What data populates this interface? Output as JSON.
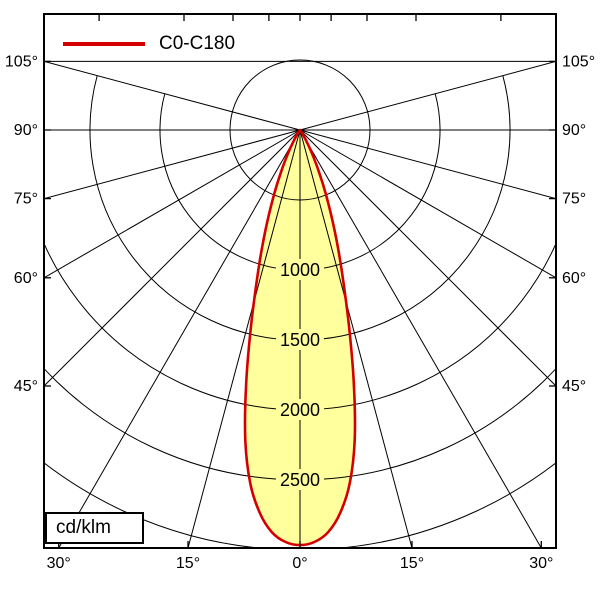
{
  "colors": {
    "curve_red": "#d40000",
    "beam_fill_yellow": "#ffff9e",
    "grid_black": "#000000",
    "background": "#ffffff"
  },
  "legend": {
    "label": "C0-C180"
  },
  "unit_box": {
    "label": "cd/klm"
  },
  "chart_data": {
    "type": "polar",
    "subtype": "luminous-intensity-distribution-curve",
    "unit": "cd/klm",
    "title": "",
    "series": [
      {
        "name": "C0-C180",
        "color": "#d40000",
        "symmetric": true,
        "angles_deg": [
          0,
          2,
          4,
          6,
          8,
          10,
          12,
          14,
          16,
          18,
          20,
          22,
          24,
          26,
          28,
          30,
          32,
          34,
          36,
          38
        ],
        "intensity_cd_per_klm": [
          2965,
          2945,
          2880,
          2750,
          2550,
          2250,
          1850,
          1450,
          1120,
          870,
          660,
          490,
          350,
          240,
          155,
          90,
          45,
          18,
          4,
          0
        ]
      }
    ],
    "angle_axis": {
      "grid_step_deg": 15,
      "max_display_angle_deg": 105,
      "side_labels": [
        {
          "angle_deg": 105,
          "label": "105°"
        },
        {
          "angle_deg": 90,
          "label": "90°"
        },
        {
          "angle_deg": 75,
          "label": "75°"
        },
        {
          "angle_deg": 60,
          "label": "60°"
        },
        {
          "angle_deg": 45,
          "label": "45°"
        }
      ],
      "bottom_labels": [
        {
          "angle_deg": -30,
          "label": "30°"
        },
        {
          "angle_deg": -15,
          "label": "15°"
        },
        {
          "angle_deg": 0,
          "label": "0°"
        },
        {
          "angle_deg": 15,
          "label": "15°"
        },
        {
          "angle_deg": 30,
          "label": "30°"
        }
      ]
    },
    "radial_axis": {
      "circle_values": [
        500,
        1000,
        1500,
        2000,
        2500,
        3000
      ],
      "labeled_values": [
        1000,
        1500,
        2000,
        2500
      ],
      "labels": [
        "1000",
        "1500",
        "2000",
        "2500"
      ]
    }
  }
}
